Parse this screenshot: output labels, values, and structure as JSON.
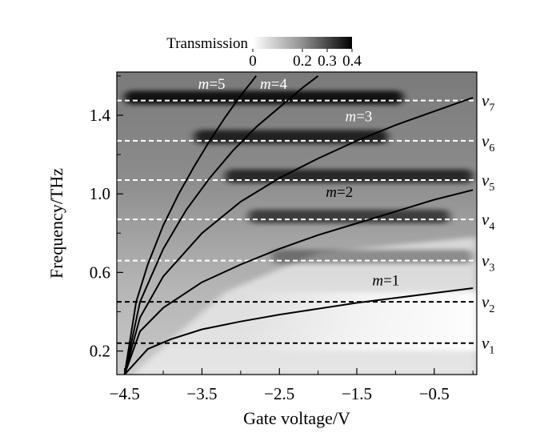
{
  "chart_data": {
    "type": "heatmap",
    "title": "",
    "xlabel": "Gate voltage/V",
    "ylabel": "Frequency/THz",
    "xlim": [
      -4.6,
      0.05
    ],
    "ylim": [
      0.08,
      1.62
    ],
    "x_ticks": [
      -4.5,
      -3.5,
      -2.5,
      -1.5,
      -0.5
    ],
    "x_tick_labels": [
      "−4.5",
      "−3.5",
      "−2.5",
      "−1.5",
      "−0.5"
    ],
    "y_ticks": [
      0.2,
      0.6,
      1.0,
      1.4
    ],
    "y_tick_labels": [
      "0.2",
      "0.6",
      "1.0",
      "1.4"
    ],
    "colorbar": {
      "label": "Transmission",
      "range": [
        0,
        0.4
      ],
      "ticks": [
        0,
        0.2,
        0.3,
        0.4
      ],
      "tick_labels": [
        "0",
        "0.2",
        "0.3",
        "0.4"
      ],
      "low_color": "#ffffff",
      "high_color": "#000000"
    },
    "horizontal_lines": [
      {
        "label_symbol": "v",
        "label_index": "1",
        "y": 0.24,
        "color": "#000000",
        "style": "dashed"
      },
      {
        "label_symbol": "v",
        "label_index": "2",
        "y": 0.45,
        "color": "#000000",
        "style": "dashed"
      },
      {
        "label_symbol": "v",
        "label_index": "3",
        "y": 0.66,
        "color": "#ffffff",
        "style": "dashed"
      },
      {
        "label_symbol": "v",
        "label_index": "4",
        "y": 0.87,
        "color": "#ffffff",
        "style": "dashed"
      },
      {
        "label_symbol": "v",
        "label_index": "5",
        "y": 1.07,
        "color": "#ffffff",
        "style": "dashed"
      },
      {
        "label_symbol": "v",
        "label_index": "6",
        "y": 1.27,
        "color": "#ffffff",
        "style": "dashed"
      },
      {
        "label_symbol": "v",
        "label_index": "7",
        "y": 1.475,
        "color": "#ffffff",
        "style": "dashed"
      }
    ],
    "series": [
      {
        "name_symbol": "m",
        "name_value": "=1",
        "label_color": "#000000",
        "x": [
          -4.5,
          -4.2,
          -3.9,
          -3.5,
          -3.0,
          -2.5,
          -2.0,
          -1.5,
          -1.0,
          -0.5,
          0.0
        ],
        "y": [
          0.08,
          0.21,
          0.26,
          0.31,
          0.35,
          0.385,
          0.415,
          0.445,
          0.47,
          0.495,
          0.52
        ]
      },
      {
        "name_symbol": "m",
        "name_value": "=2",
        "label_color": "#000000",
        "x": [
          -4.5,
          -4.3,
          -4.0,
          -3.5,
          -3.0,
          -2.5,
          -2.0,
          -1.5,
          -1.0,
          -0.5,
          0.0
        ],
        "y": [
          0.08,
          0.3,
          0.42,
          0.55,
          0.64,
          0.72,
          0.79,
          0.85,
          0.91,
          0.97,
          1.02
        ]
      },
      {
        "name_symbol": "m",
        "name_value": "=3",
        "label_color": "#ffffff",
        "x": [
          -4.5,
          -4.3,
          -4.0,
          -3.5,
          -3.0,
          -2.5,
          -2.0,
          -1.5,
          -1.0,
          -0.5,
          0.0
        ],
        "y": [
          0.08,
          0.37,
          0.58,
          0.8,
          0.96,
          1.08,
          1.18,
          1.27,
          1.35,
          1.42,
          1.49
        ]
      },
      {
        "name_symbol": "m",
        "name_value": "=4",
        "label_color": "#ffffff",
        "x": [
          -4.5,
          -4.3,
          -4.0,
          -3.7,
          -3.4,
          -3.1,
          -2.8,
          -2.5,
          -2.2,
          -2.0
        ],
        "y": [
          0.08,
          0.45,
          0.72,
          0.92,
          1.08,
          1.22,
          1.34,
          1.44,
          1.54,
          1.6
        ]
      },
      {
        "name_symbol": "m",
        "name_value": "=5",
        "label_color": "#ffffff",
        "x": [
          -4.5,
          -4.35,
          -4.2,
          -4.0,
          -3.8,
          -3.6,
          -3.4,
          -3.2,
          -3.0,
          -2.8
        ],
        "y": [
          0.08,
          0.45,
          0.64,
          0.84,
          1.0,
          1.14,
          1.27,
          1.39,
          1.5,
          1.6
        ]
      }
    ],
    "intensity_bands": [
      {
        "y": 1.49,
        "half_width": 0.035,
        "x_from": -4.5,
        "x_to": -0.9,
        "strength": 0.85
      },
      {
        "y": 1.29,
        "half_width": 0.035,
        "x_from": -3.6,
        "x_to": -1.1,
        "strength": 0.75
      },
      {
        "y": 1.09,
        "half_width": 0.035,
        "x_from": -3.2,
        "x_to": 0.0,
        "strength": 0.7
      },
      {
        "y": 0.885,
        "half_width": 0.035,
        "x_from": -2.9,
        "x_to": -0.3,
        "strength": 0.6
      },
      {
        "y": 0.68,
        "half_width": 0.035,
        "x_from": -2.6,
        "x_to": 0.0,
        "strength": 0.35
      }
    ]
  }
}
